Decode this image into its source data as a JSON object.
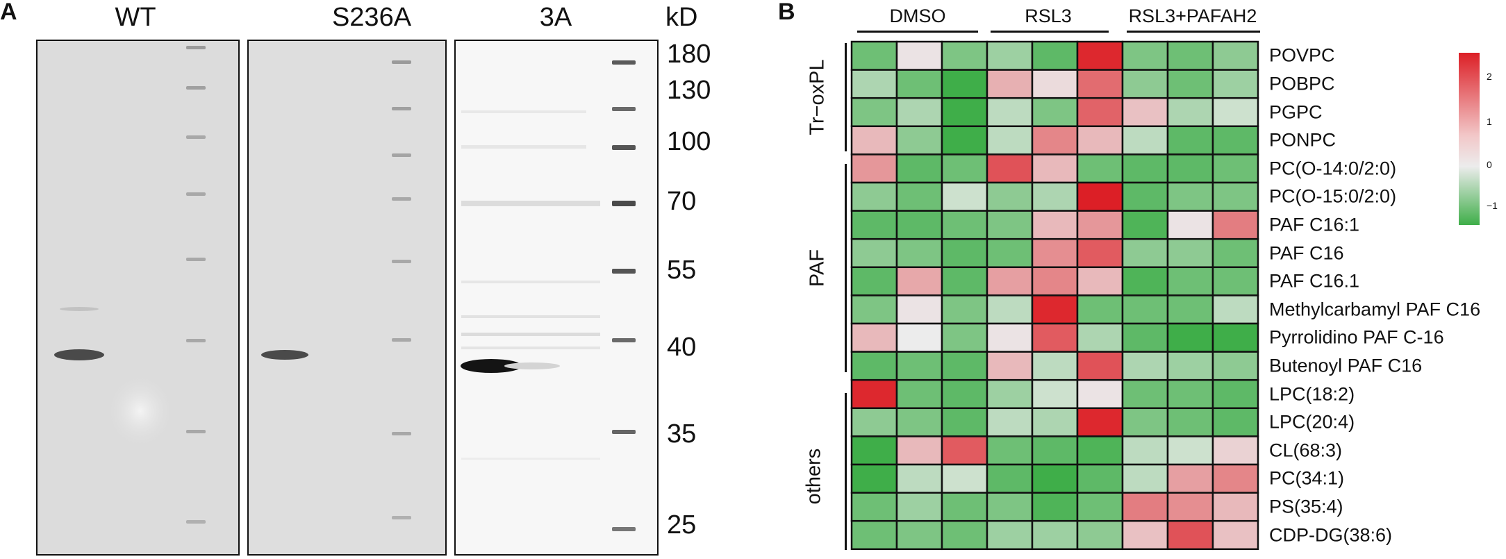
{
  "panels": {
    "A": "A",
    "B": "B"
  },
  "gel": {
    "lanes": [
      "WT",
      "S236A",
      "3A"
    ],
    "unit": "kD",
    "markers": [
      "180",
      "130",
      "100",
      "70",
      "55",
      "40",
      "35",
      "25"
    ]
  },
  "heatmap": {
    "groups": [
      "DMSO",
      "RSL3",
      "RSL3+PAFAH2"
    ],
    "categories": [
      "Tr−oxPL",
      "PAF",
      "others"
    ],
    "rows": [
      "POVPC",
      "POBPC",
      "PGPC",
      "PONPC",
      "PC(O-14:0/2:0)",
      "PC(O-15:0/2:0)",
      "PAF C16:1",
      "PAF C16",
      "PAF C16.1",
      "Methylcarbamyl PAF C16",
      "Pyrrolidino PAF C-16",
      "Butenoyl PAF C16",
      "LPC(18:2)",
      "LPC(20:4)",
      "CL(68:3)",
      "PC(34:1)",
      "PS(35:4)",
      "CDP-DG(38:6)"
    ],
    "legend_ticks": [
      "2",
      "1",
      "0",
      "−1"
    ],
    "colors": {
      "low": "#3fae49",
      "mid": "#ececec",
      "high": "#dc1f26"
    }
  },
  "chart_data": {
    "type": "heatmap",
    "columns": [
      "DMSO 1",
      "DMSO 2",
      "DMSO 3",
      "RSL3 1",
      "RSL3 2",
      "RSL3 3",
      "RSL3+PAFAH2 1",
      "RSL3+PAFAH2 2",
      "RSL3+PAFAH2 3"
    ],
    "rows": [
      "POVPC",
      "POBPC",
      "PGPC",
      "PONPC",
      "PC(O-14:0/2:0)",
      "PC(O-15:0/2:0)",
      "PAF C16:1",
      "PAF C16",
      "PAF C16.1",
      "Methylcarbamyl PAF C16",
      "Pyrrolidino PAF C-16",
      "Butenoyl PAF C16",
      "LPC(18:2)",
      "LPC(20:4)",
      "CL(68:3)",
      "PC(34:1)",
      "PS(35:4)",
      "CDP-DG(38:6)"
    ],
    "values": [
      [
        -0.8,
        0.1,
        -0.7,
        -0.5,
        -0.9,
        2.3,
        -0.7,
        -0.8,
        -0.6
      ],
      [
        -0.4,
        -0.8,
        -1.1,
        0.7,
        0.2,
        1.5,
        -0.6,
        -0.8,
        -0.5
      ],
      [
        -0.7,
        -0.4,
        -1.1,
        -0.3,
        -0.7,
        1.6,
        0.5,
        -0.4,
        -0.2
      ],
      [
        0.6,
        -0.6,
        -1.1,
        -0.3,
        1.2,
        0.6,
        -0.3,
        -0.9,
        -0.9
      ],
      [
        1.0,
        -0.9,
        -0.8,
        1.8,
        0.6,
        -0.8,
        -0.9,
        -0.9,
        -0.8
      ],
      [
        -0.6,
        -0.8,
        -0.2,
        -0.6,
        -0.4,
        2.4,
        -0.9,
        -0.7,
        -0.7
      ],
      [
        -0.9,
        -0.9,
        -0.8,
        -0.7,
        0.6,
        1.0,
        -1.0,
        0.1,
        1.3
      ],
      [
        -0.6,
        -0.7,
        -0.9,
        -0.8,
        1.1,
        1.7,
        -0.6,
        -0.6,
        -0.8
      ],
      [
        -0.9,
        0.8,
        -0.9,
        0.9,
        1.2,
        0.6,
        -1.0,
        -0.8,
        -0.8
      ],
      [
        -0.7,
        0.1,
        -0.7,
        -0.3,
        2.3,
        -0.8,
        -0.8,
        -0.8,
        -0.3
      ],
      [
        0.6,
        0.0,
        -0.7,
        0.1,
        1.7,
        -0.4,
        -0.9,
        -1.1,
        -1.1
      ],
      [
        -0.9,
        -0.8,
        -0.9,
        0.6,
        -0.3,
        1.8,
        -0.4,
        -0.5,
        -0.6
      ],
      [
        2.3,
        -0.8,
        -0.9,
        -0.5,
        -0.2,
        0.1,
        -0.8,
        -0.8,
        -0.9
      ],
      [
        -0.6,
        -0.7,
        -0.9,
        -0.3,
        -0.4,
        2.3,
        -0.7,
        -0.8,
        -0.9
      ],
      [
        -1.1,
        0.6,
        1.7,
        -0.8,
        -0.9,
        -1.0,
        -0.3,
        -0.2,
        0.3
      ],
      [
        -1.1,
        -0.3,
        -0.2,
        -0.9,
        -1.1,
        -0.9,
        -0.3,
        0.9,
        1.2
      ],
      [
        -0.8,
        -0.5,
        -0.8,
        -0.7,
        -1.0,
        -0.8,
        1.3,
        1.1,
        0.6
      ],
      [
        -0.8,
        -0.7,
        -0.8,
        -0.5,
        -0.5,
        -0.6,
        0.5,
        1.8,
        0.5
      ]
    ],
    "colorbar_range": [
      -1.3,
      2.5
    ],
    "legend_placement": "top-right"
  }
}
